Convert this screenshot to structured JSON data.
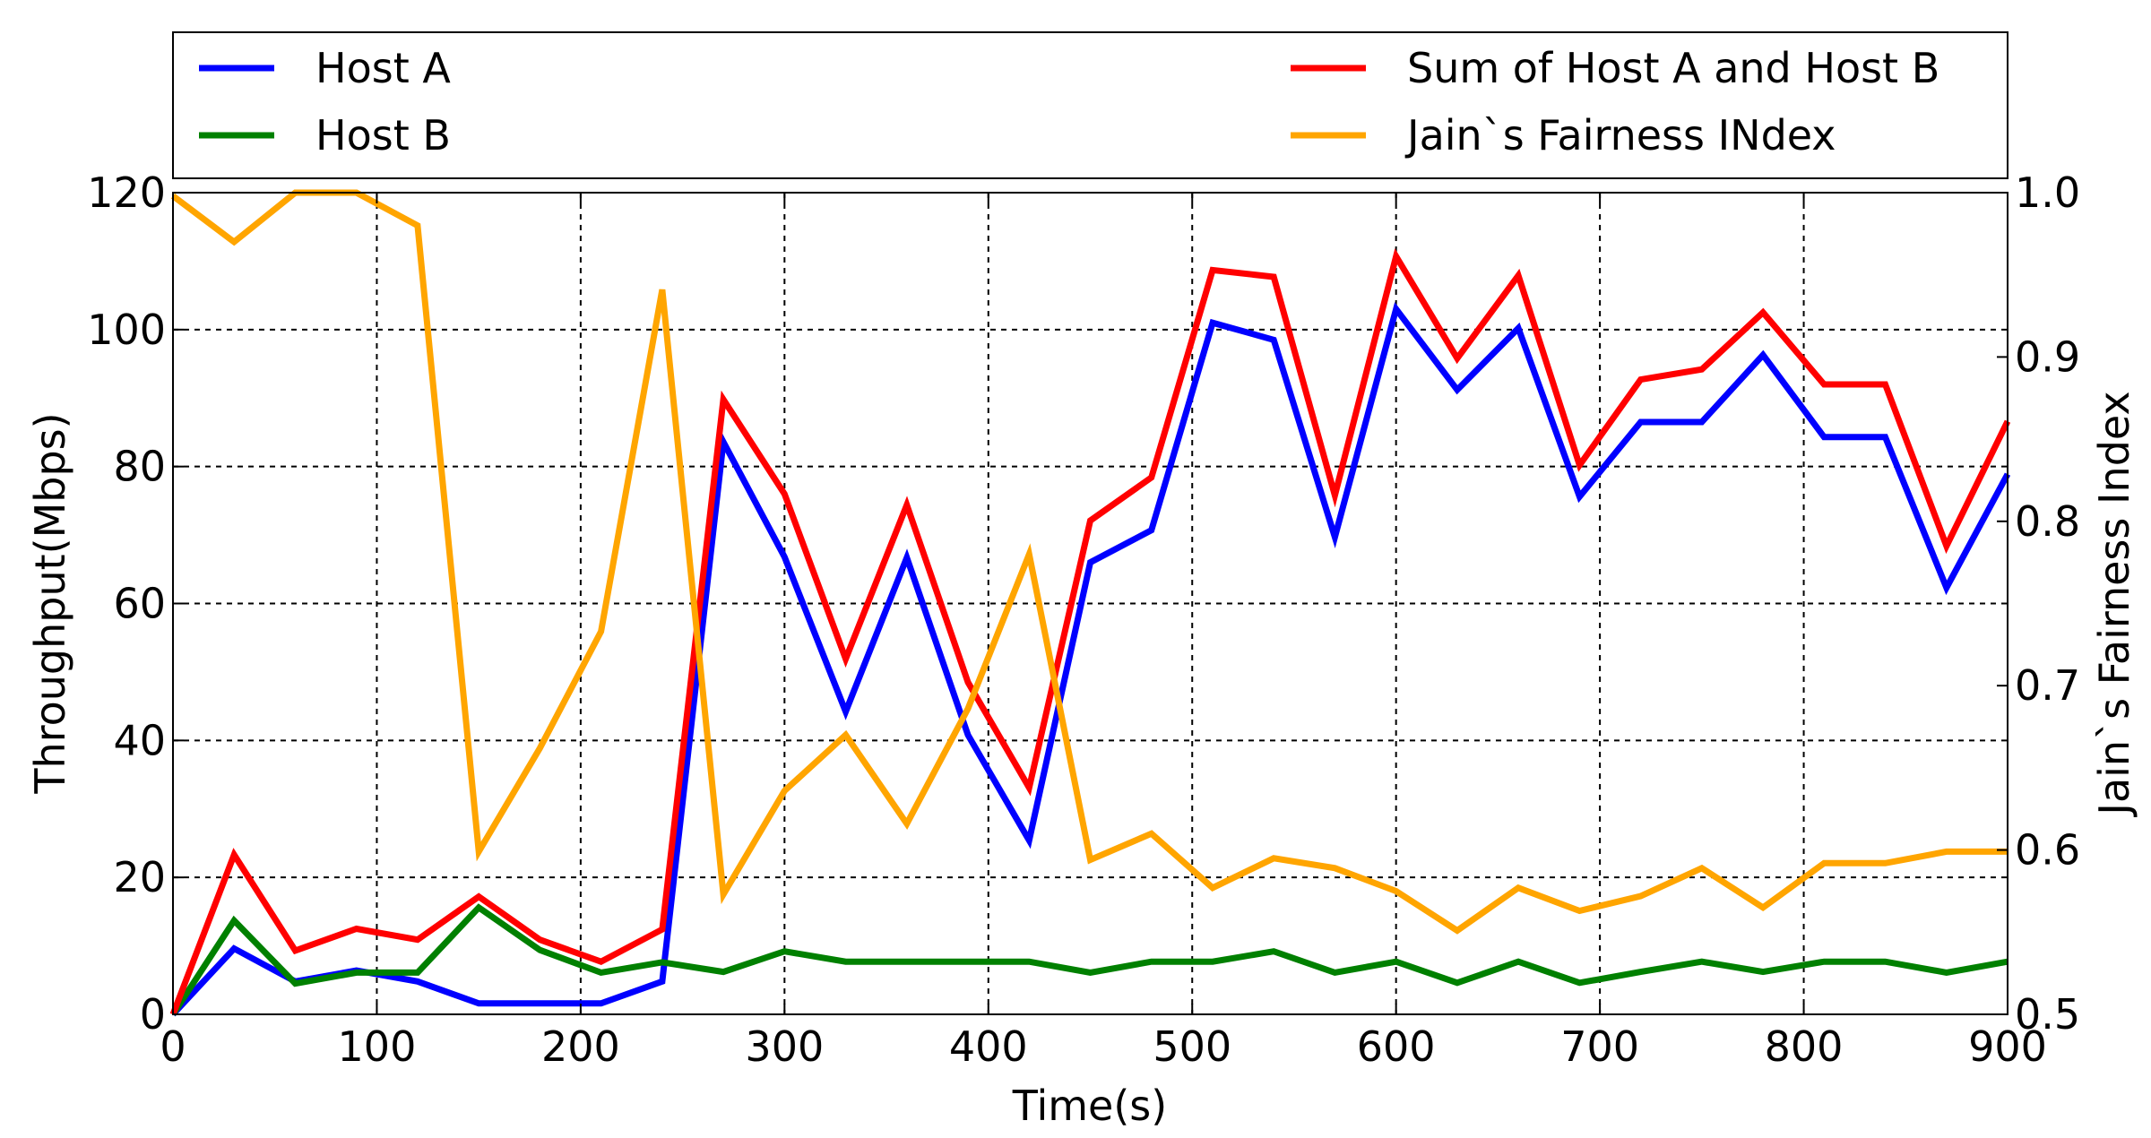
{
  "chart_data": {
    "type": "line",
    "xlabel": "Time(s)",
    "ylabel": "Throughput(Mbps)",
    "y2label": "Jain`s Fairness Index",
    "xlim": [
      0,
      900
    ],
    "ylim": [
      0,
      120
    ],
    "y2lim": [
      0.5,
      1.0
    ],
    "grid": true,
    "legend_position": "top",
    "x_ticks": [
      "0",
      "100",
      "200",
      "300",
      "400",
      "500",
      "600",
      "700",
      "800",
      "900"
    ],
    "y_ticks": [
      "0",
      "20",
      "40",
      "60",
      "80",
      "100",
      "120"
    ],
    "y2_ticks": [
      "0.5",
      "0.6",
      "0.7",
      "0.8",
      "0.9",
      "1.0"
    ],
    "x": [
      0,
      30,
      60,
      90,
      120,
      150,
      180,
      210,
      240,
      270,
      300,
      330,
      360,
      390,
      420,
      450,
      480,
      510,
      540,
      570,
      600,
      630,
      660,
      690,
      720,
      750,
      780,
      810,
      840,
      870,
      900
    ],
    "series": [
      {
        "name": "Host A",
        "color": "#0000ff",
        "axis": "left",
        "values": [
          0,
          9.6,
          4.8,
          6.4,
          4.8,
          1.6,
          1.6,
          1.6,
          4.8,
          83.6,
          66.8,
          44.2,
          66.7,
          40.8,
          25.4,
          66.0,
          70.7,
          101.0,
          98.5,
          69.7,
          103.0,
          91.2,
          100.2,
          75.6,
          86.5,
          86.5,
          96.3,
          84.3,
          84.3,
          62.3,
          78.9
        ]
      },
      {
        "name": "Host B",
        "color": "#008000",
        "axis": "left",
        "values": [
          0,
          13.7,
          4.5,
          6.1,
          6.1,
          15.6,
          9.4,
          6.1,
          7.6,
          6.2,
          9.2,
          7.7,
          7.7,
          7.7,
          7.7,
          6.1,
          7.7,
          7.7,
          9.2,
          6.1,
          7.7,
          4.6,
          7.7,
          4.6,
          6.2,
          7.7,
          6.2,
          7.7,
          7.7,
          6.1,
          7.7
        ]
      },
      {
        "name": "Sum of Host A and Host B",
        "color": "#ff0000",
        "axis": "left",
        "values": [
          0,
          23.3,
          9.3,
          12.5,
          10.9,
          17.2,
          10.9,
          7.7,
          12.4,
          89.8,
          76.0,
          51.9,
          74.4,
          48.5,
          33.1,
          72.1,
          78.4,
          108.7,
          107.7,
          75.8,
          110.7,
          95.8,
          107.9,
          80.2,
          92.7,
          94.2,
          102.5,
          92.0,
          92.0,
          68.4,
          86.6
        ]
      },
      {
        "name": "Jain`s Fairness INdex",
        "color": "#ffa500",
        "axis": "right",
        "values": [
          0.998,
          0.97,
          1.0,
          1.0,
          0.98,
          0.599,
          0.662,
          0.733,
          0.941,
          0.573,
          0.636,
          0.67,
          0.616,
          0.686,
          0.78,
          0.594,
          0.61,
          0.577,
          0.595,
          0.589,
          0.575,
          0.551,
          0.577,
          0.563,
          0.572,
          0.589,
          0.565,
          0.592,
          0.592,
          0.599,
          0.599
        ]
      }
    ]
  }
}
